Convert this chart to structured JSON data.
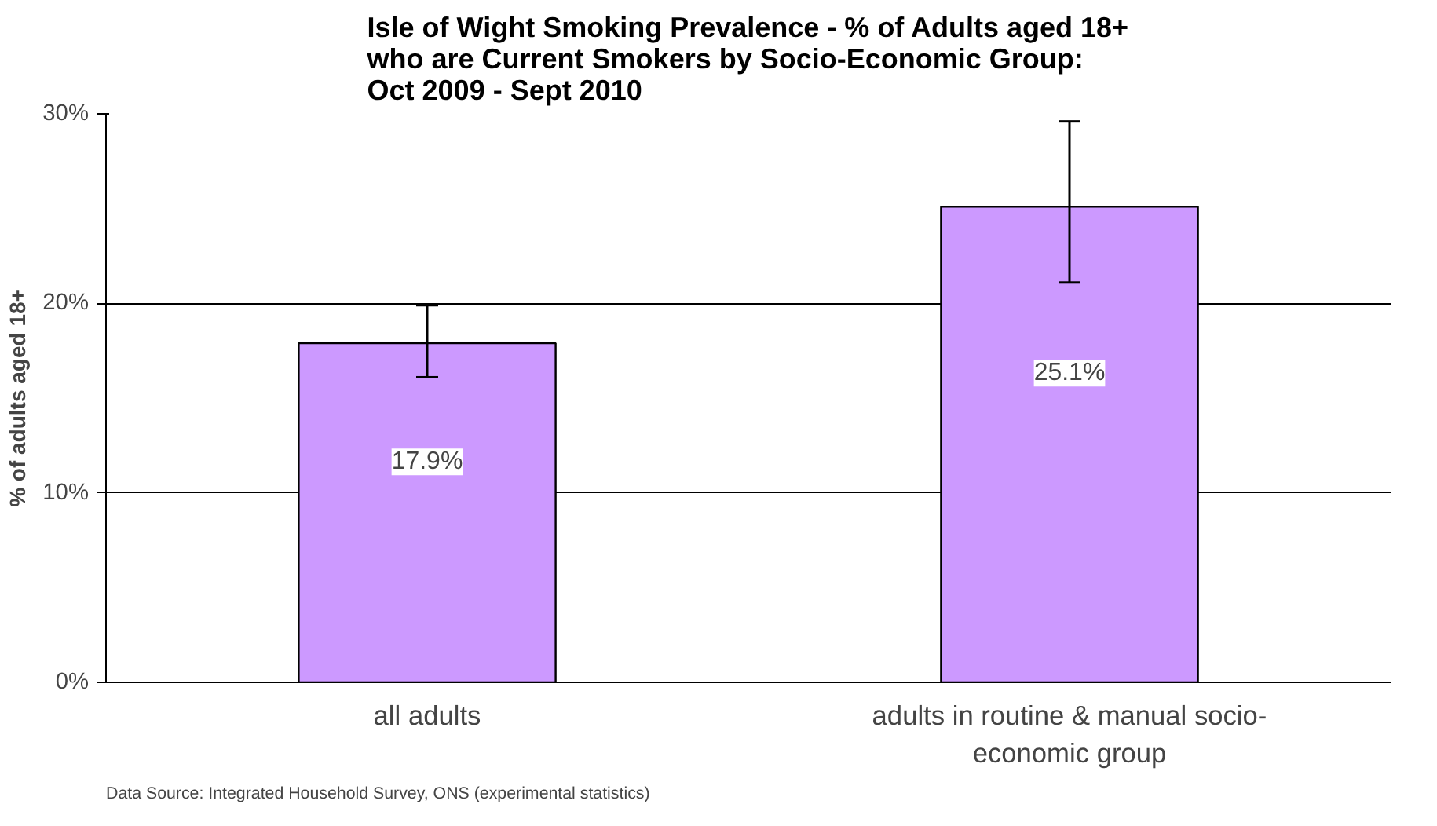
{
  "chart_data": {
    "type": "bar",
    "title": "Isle of Wight Smoking Prevalence - % of Adults aged 18+\nwho are Current Smokers by Socio-Economic Group:\nOct 2009 - Sept 2010",
    "ylabel": "% of adults aged 18+",
    "categories": [
      "all adults",
      "adults in routine & manual socio-economic group"
    ],
    "values": [
      17.9,
      25.1
    ],
    "value_labels": [
      "17.9%",
      "25.1%"
    ],
    "errors": [
      [
        16.1,
        19.9
      ],
      [
        21.1,
        29.6
      ]
    ],
    "color": "#cc99ff",
    "ylim": [
      0,
      30
    ],
    "yticks": [
      {
        "value": 0,
        "label": "0%"
      },
      {
        "value": 10,
        "label": "10%"
      },
      {
        "value": 20,
        "label": "20%"
      },
      {
        "value": 30,
        "label": "30%"
      }
    ],
    "grid": "y",
    "annotations": [
      "Data Source: Integrated Household Survey, ONS (experimental statistics)"
    ]
  }
}
